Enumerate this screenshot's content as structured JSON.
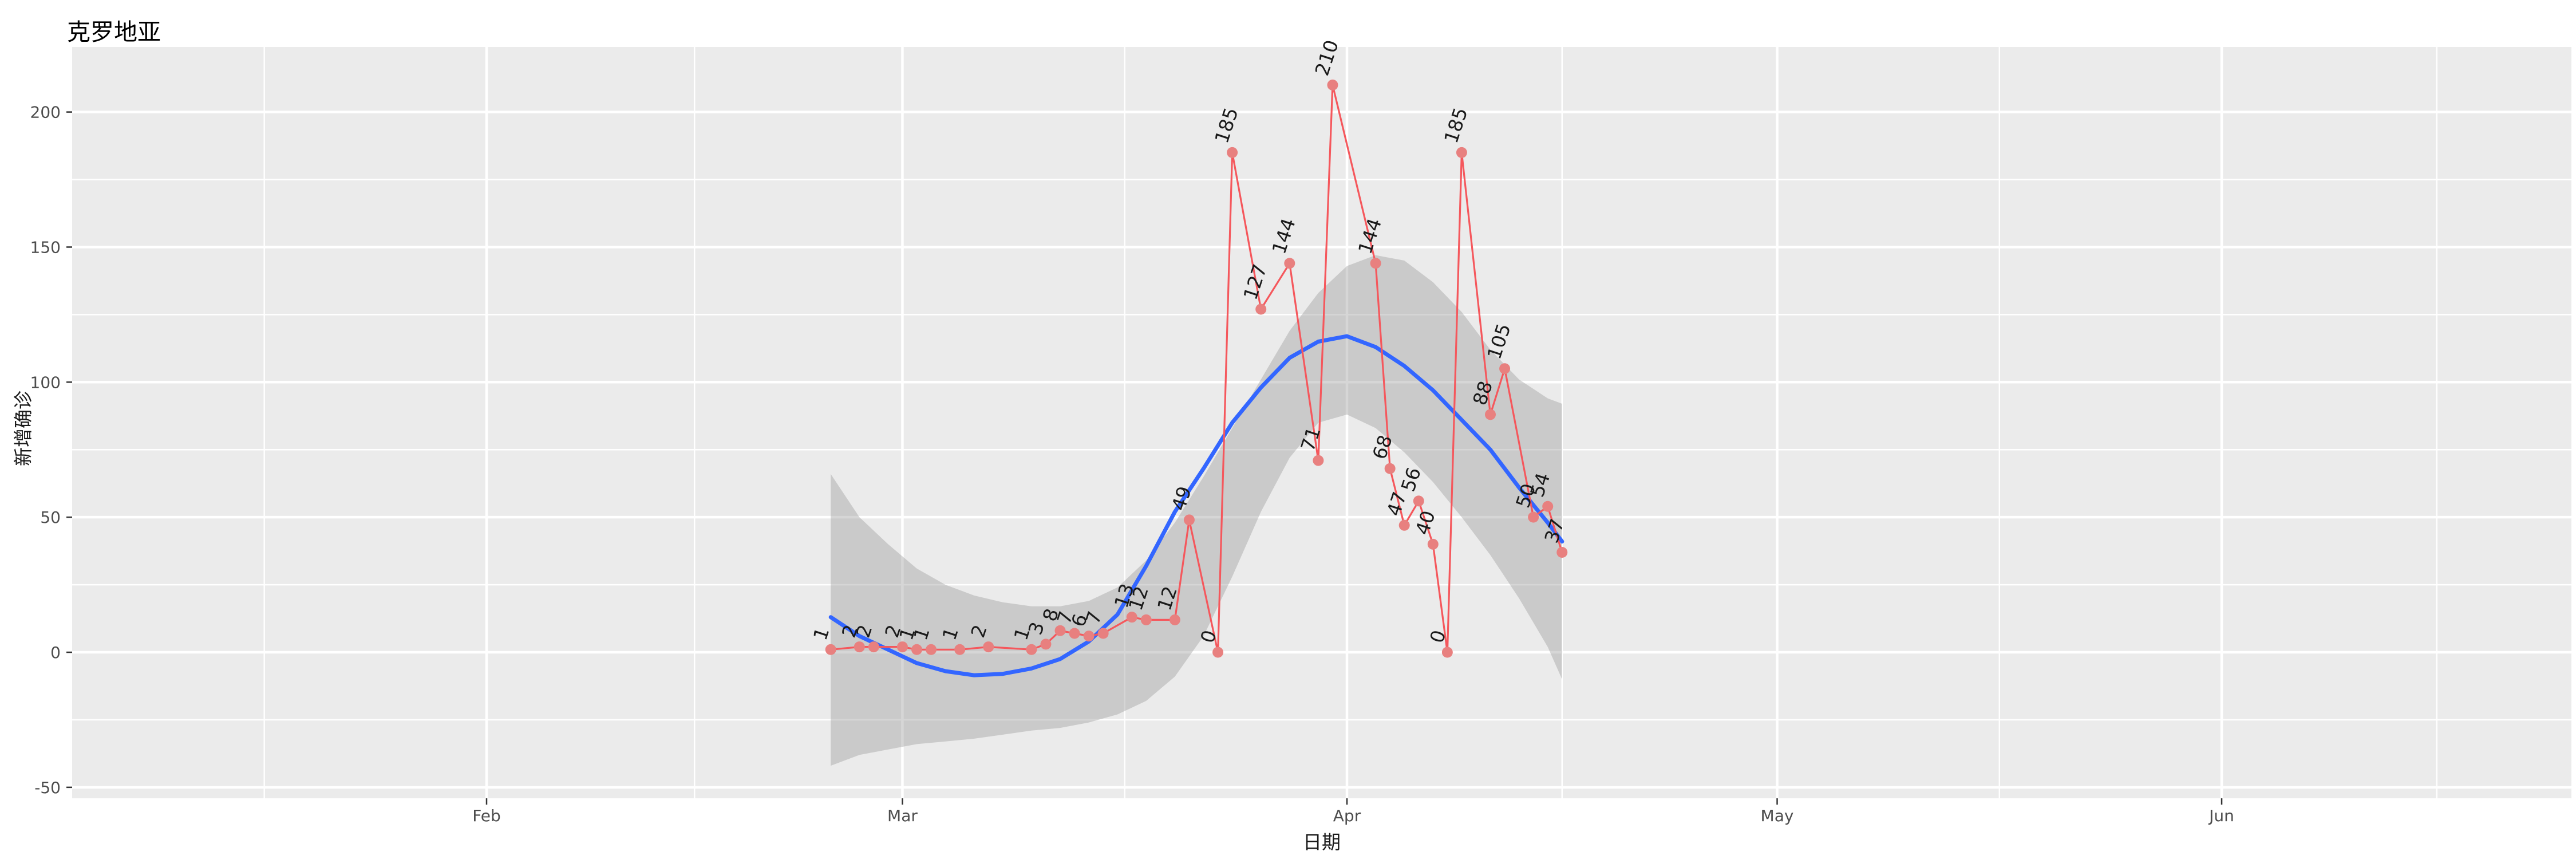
{
  "title": "克罗地亚",
  "axes": {
    "x_label": "日期",
    "y_label": "新增确诊"
  },
  "colors": {
    "background": "#FFFFFF",
    "panel": "#EBEBEB",
    "grid": "#FFFFFF",
    "band": "rgba(153,153,153,0.4)",
    "smooth_line": "#3366FF",
    "series_line": "#F5575C",
    "series_point": "#E8807F",
    "point_label": "#1A1A1A",
    "tick_text": "#4D4D4D",
    "tick_mark": "#333333"
  },
  "chart_data": {
    "type": "line",
    "title": "克罗地亚",
    "xlabel": "日期",
    "ylabel": "新增确诊",
    "grid": true,
    "legend": "none",
    "ylim": [
      -53,
      224
    ],
    "y_ticks": [
      -50,
      0,
      50,
      100,
      150,
      200
    ],
    "x_ticks": [
      {
        "label": "Feb",
        "date": "2020-02-01"
      },
      {
        "label": "Mar",
        "date": "2020-03-01"
      },
      {
        "label": "Apr",
        "date": "2020-04-01"
      },
      {
        "label": "May",
        "date": "2020-05-01"
      },
      {
        "label": "Jun",
        "date": "2020-06-01"
      }
    ],
    "x_month_boundaries": [
      "2020-01-01",
      "2020-02-01",
      "2020-03-01",
      "2020-04-01",
      "2020-05-01",
      "2020-06-01",
      "2020-07-01"
    ],
    "series": [
      {
        "name": "daily_new_cases",
        "type": "line+markers+labels",
        "label_angle_deg": -72,
        "dates": [
          "2020-02-25",
          "2020-02-27",
          "2020-02-28",
          "2020-03-01",
          "2020-03-02",
          "2020-03-03",
          "2020-03-05",
          "2020-03-07",
          "2020-03-10",
          "2020-03-11",
          "2020-03-12",
          "2020-03-13",
          "2020-03-14",
          "2020-03-15",
          "2020-03-17",
          "2020-03-18",
          "2020-03-20",
          "2020-03-21",
          "2020-03-23",
          "2020-03-24",
          "2020-03-26",
          "2020-03-28",
          "2020-03-30",
          "2020-03-31",
          "2020-04-03",
          "2020-04-04",
          "2020-04-05",
          "2020-04-06",
          "2020-04-07",
          "2020-04-08",
          "2020-04-09",
          "2020-04-11",
          "2020-04-12",
          "2020-04-14",
          "2020-04-15",
          "2020-04-16"
        ],
        "values": [
          1,
          2,
          2,
          2,
          1,
          1,
          1,
          2,
          1,
          3,
          8,
          7,
          6,
          7,
          13,
          12,
          12,
          49,
          0,
          185,
          127,
          144,
          71,
          210,
          144,
          68,
          47,
          56,
          40,
          0,
          185,
          88,
          105,
          50,
          54,
          37
        ],
        "labels": [
          "1",
          "2",
          "2",
          "2",
          "1",
          "1",
          "1",
          "2",
          "1",
          "3",
          "8",
          "7",
          "6",
          "7",
          "13",
          "12",
          "12",
          "49",
          "0",
          "185",
          "127",
          "144",
          "71",
          "210",
          "144",
          "68",
          "47",
          "56",
          "40",
          "0",
          "185",
          "88",
          "105",
          "50",
          "54",
          "37"
        ]
      },
      {
        "name": "loess_smooth",
        "type": "line",
        "days_since_feb1": [
          24,
          26,
          28,
          30,
          32,
          34,
          36,
          38,
          40,
          42,
          44,
          46,
          48,
          50,
          52,
          54,
          56,
          58,
          60,
          62,
          64,
          66,
          68,
          70,
          72,
          74,
          75
        ],
        "values": [
          13,
          6,
          1,
          -4,
          -7,
          -8.5,
          -8,
          -6,
          -2.5,
          4,
          14,
          32,
          52,
          68,
          85,
          98,
          109,
          115,
          117,
          113,
          106,
          97,
          86,
          75,
          61,
          48,
          41
        ]
      },
      {
        "name": "confidence_band",
        "type": "area",
        "days_since_feb1": [
          24,
          26,
          28,
          30,
          32,
          34,
          36,
          38,
          40,
          42,
          44,
          46,
          48,
          50,
          52,
          54,
          56,
          58,
          60,
          62,
          64,
          66,
          68,
          70,
          72,
          74,
          75
        ],
        "upper": [
          66,
          50,
          40,
          31,
          25,
          21,
          18.5,
          17,
          17,
          19,
          24,
          34,
          48,
          65,
          83,
          101,
          119,
          133,
          143,
          147,
          145,
          137,
          126,
          112,
          101,
          94,
          92
        ],
        "lower": [
          -42,
          -38,
          -36,
          -34,
          -33,
          -32,
          -30.5,
          -29,
          -28,
          -26,
          -23,
          -18,
          -9,
          6,
          28,
          52,
          72,
          85,
          88,
          83,
          74,
          63,
          50,
          36,
          20,
          2,
          -10
        ]
      }
    ]
  }
}
